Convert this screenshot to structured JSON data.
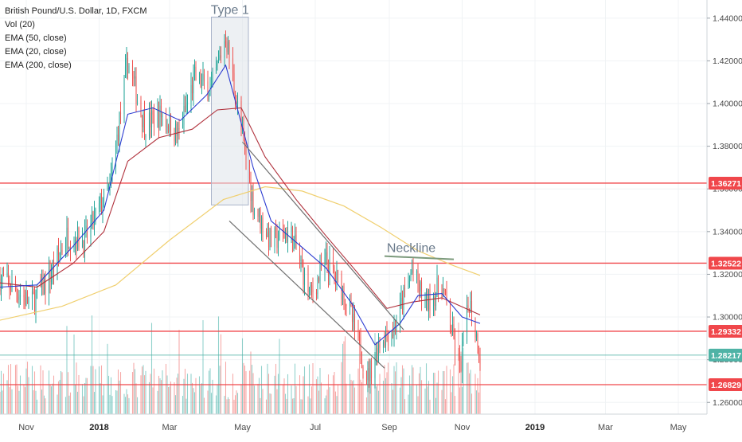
{
  "legend": {
    "title": "British Pound/U.S. Dollar, 1D, FXCM",
    "studies": [
      "Vol (20)",
      "EMA (50, close)",
      "EMA (20, close)",
      "EMA (200, close)"
    ]
  },
  "colors": {
    "up": "#26a69a",
    "down": "#ef5350",
    "ema20": "#2b3bd1",
    "ema50": "#b0303b",
    "ema200": "#f0cf6e",
    "level": "#f0474b",
    "currentPrice": "#4fb3a6",
    "channel": "#6f6f6f",
    "neckline": "#7c9a7c",
    "box": "#a9b3c9"
  },
  "annotations": {
    "box_label": "Type 1",
    "neckline_label": "Neckline"
  },
  "chart_data": {
    "type": "candlestick",
    "title": "British Pound/U.S. Dollar, 1D, FXCM",
    "x_range": [
      "2017-10-10",
      "2019-05-25"
    ],
    "y_range": [
      1.2545,
      1.4485
    ],
    "y_ticks": [
      "1.26000",
      "1.28000",
      "1.30000",
      "1.32000",
      "1.34000",
      "1.36000",
      "1.38000",
      "1.40000",
      "1.42000",
      "1.44000"
    ],
    "x_ticks": [
      {
        "label": "Nov",
        "date": "2017-11-01"
      },
      {
        "label": "2018",
        "date": "2018-01-01",
        "bold": true
      },
      {
        "label": "Mar",
        "date": "2018-03-01"
      },
      {
        "label": "May",
        "date": "2018-05-01"
      },
      {
        "label": "Jul",
        "date": "2018-07-01"
      },
      {
        "label": "Sep",
        "date": "2018-09-01"
      },
      {
        "label": "Nov",
        "date": "2018-11-01"
      },
      {
        "label": "2019",
        "date": "2019-01-01",
        "bold": true
      },
      {
        "label": "Mar",
        "date": "2019-03-01"
      },
      {
        "label": "May",
        "date": "2019-05-01"
      }
    ],
    "close_path": [
      [
        "2017-10-10",
        1.318
      ],
      [
        "2017-10-25",
        1.312
      ],
      [
        "2017-11-05",
        1.306
      ],
      [
        "2017-11-20",
        1.318
      ],
      [
        "2017-12-05",
        1.338
      ],
      [
        "2017-12-20",
        1.336
      ],
      [
        "2018-01-02",
        1.352
      ],
      [
        "2018-01-10",
        1.36
      ],
      [
        "2018-01-25",
        1.42
      ],
      [
        "2018-02-08",
        1.39
      ],
      [
        "2018-02-22",
        1.395
      ],
      [
        "2018-03-08",
        1.385
      ],
      [
        "2018-03-22",
        1.412
      ],
      [
        "2018-04-05",
        1.406
      ],
      [
        "2018-04-17",
        1.432
      ],
      [
        "2018-04-25",
        1.405
      ],
      [
        "2018-05-10",
        1.353
      ],
      [
        "2018-05-25",
        1.335
      ],
      [
        "2018-06-10",
        1.34
      ],
      [
        "2018-06-27",
        1.31
      ],
      [
        "2018-07-10",
        1.326
      ],
      [
        "2018-07-25",
        1.312
      ],
      [
        "2018-08-14",
        1.272
      ],
      [
        "2018-08-25",
        1.29
      ],
      [
        "2018-09-05",
        1.294
      ],
      [
        "2018-09-20",
        1.322
      ],
      [
        "2018-10-01",
        1.306
      ],
      [
        "2018-10-15",
        1.315
      ],
      [
        "2018-10-30",
        1.275
      ],
      [
        "2018-11-07",
        1.308
      ],
      [
        "2018-11-16",
        1.282
      ]
    ],
    "volume": {
      "min_date": "2017-10-10",
      "max_date": "2018-11-16",
      "note": "per-day volume histogram, up/down colored"
    },
    "ema_20": [
      [
        "2017-10-10",
        1.314
      ],
      [
        "2017-11-10",
        1.315
      ],
      [
        "2017-12-10",
        1.333
      ],
      [
        "2018-01-05",
        1.35
      ],
      [
        "2018-01-25",
        1.395
      ],
      [
        "2018-02-15",
        1.398
      ],
      [
        "2018-03-10",
        1.392
      ],
      [
        "2018-04-01",
        1.404
      ],
      [
        "2018-04-17",
        1.418
      ],
      [
        "2018-05-10",
        1.37
      ],
      [
        "2018-05-25",
        1.345
      ],
      [
        "2018-06-15",
        1.335
      ],
      [
        "2018-07-10",
        1.323
      ],
      [
        "2018-08-01",
        1.306
      ],
      [
        "2018-08-20",
        1.287
      ],
      [
        "2018-09-10",
        1.297
      ],
      [
        "2018-09-25",
        1.31
      ],
      [
        "2018-10-15",
        1.311
      ],
      [
        "2018-11-01",
        1.3
      ],
      [
        "2018-11-16",
        1.297
      ]
    ],
    "ema_50": [
      [
        "2017-10-10",
        1.316
      ],
      [
        "2017-11-10",
        1.314
      ],
      [
        "2017-12-10",
        1.325
      ],
      [
        "2018-01-05",
        1.34
      ],
      [
        "2018-01-25",
        1.373
      ],
      [
        "2018-02-20",
        1.384
      ],
      [
        "2018-03-20",
        1.388
      ],
      [
        "2018-04-10",
        1.397
      ],
      [
        "2018-04-30",
        1.398
      ],
      [
        "2018-05-20",
        1.375
      ],
      [
        "2018-06-15",
        1.355
      ],
      [
        "2018-07-10",
        1.338
      ],
      [
        "2018-08-05",
        1.321
      ],
      [
        "2018-08-30",
        1.304
      ],
      [
        "2018-09-20",
        1.307
      ],
      [
        "2018-10-15",
        1.309
      ],
      [
        "2018-11-16",
        1.301
      ]
    ],
    "ema_200": [
      [
        "2017-10-10",
        1.2985
      ],
      [
        "2017-12-01",
        1.305
      ],
      [
        "2018-01-15",
        1.315
      ],
      [
        "2018-03-01",
        1.336
      ],
      [
        "2018-04-15",
        1.355
      ],
      [
        "2018-05-20",
        1.361
      ],
      [
        "2018-06-20",
        1.359
      ],
      [
        "2018-07-25",
        1.352
      ],
      [
        "2018-08-25",
        1.342
      ],
      [
        "2018-09-25",
        1.331
      ],
      [
        "2018-10-25",
        1.324
      ],
      [
        "2018-11-16",
        1.3195
      ]
    ],
    "horizontal_levels": [
      {
        "value": 1.36271,
        "label": "1.36271",
        "color": "#f0474b"
      },
      {
        "value": 1.32522,
        "label": "1.32522",
        "color": "#f0474b"
      },
      {
        "value": 1.29332,
        "label": "1.29332",
        "color": "#f0474b"
      },
      {
        "value": 1.28217,
        "label": "1.28217",
        "color": "#4fb3a6",
        "current_price": true
      },
      {
        "value": 1.26829,
        "label": "1.26829",
        "color": "#f0474b"
      }
    ],
    "channel_lines": [
      {
        "from": [
          "2018-05-01",
          1.382
        ],
        "to": [
          "2018-09-13",
          1.294
        ]
      },
      {
        "from": [
          "2018-04-20",
          1.345
        ],
        "to": [
          "2018-08-28",
          1.276
        ]
      }
    ],
    "neckline": {
      "from": [
        "2018-08-28",
        1.3285
      ],
      "to": [
        "2018-10-25",
        1.327
      ]
    },
    "type_box": {
      "from": [
        "2018-04-05",
        1.4405
      ],
      "to": [
        "2018-05-06",
        1.3525
      ]
    }
  }
}
